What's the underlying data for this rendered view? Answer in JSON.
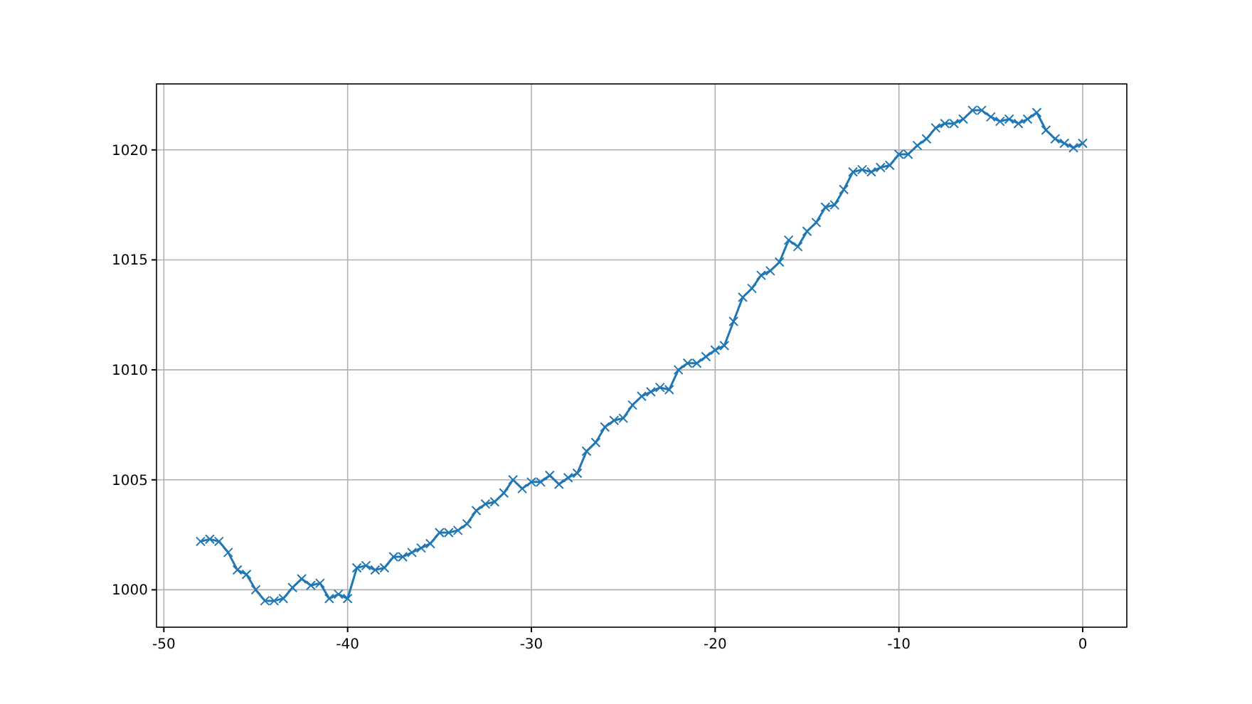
{
  "chart_data": {
    "type": "line",
    "marker": "cross",
    "grid": true,
    "xlim": [
      -50.4,
      2.4
    ],
    "ylim": [
      998.3,
      1023
    ],
    "xticks": [
      -50,
      -40,
      -30,
      -20,
      -10,
      0
    ],
    "yticks": [
      1000,
      1005,
      1010,
      1015,
      1020
    ],
    "x": [
      -48,
      -47.5,
      -47,
      -46.5,
      -46,
      -45.5,
      -45,
      -44.5,
      -44,
      -43.5,
      -43,
      -42.5,
      -42,
      -41.5,
      -41,
      -40.5,
      -40,
      -39.5,
      -39,
      -38.5,
      -38,
      -37.5,
      -37,
      -36.5,
      -36,
      -35.5,
      -35,
      -34.5,
      -34,
      -33.5,
      -33,
      -32.5,
      -32,
      -31.5,
      -31,
      -30.5,
      -30,
      -29.5,
      -29,
      -28.5,
      -28,
      -27.5,
      -27,
      -26.5,
      -26,
      -25.5,
      -25,
      -24.5,
      -24,
      -23.5,
      -23,
      -22.5,
      -22,
      -21.5,
      -21,
      -20.5,
      -20,
      -19.5,
      -19,
      -18.5,
      -18,
      -17.5,
      -17,
      -16.5,
      -16,
      -15.5,
      -15,
      -14.5,
      -14,
      -13.5,
      -13,
      -12.5,
      -12,
      -11.5,
      -11,
      -10.5,
      -10,
      -9.5,
      -9,
      -8.5,
      -8,
      -7.5,
      -7,
      -6.5,
      -6,
      -5.5,
      -5,
      -4.5,
      -4,
      -3.5,
      -3,
      -2.5,
      -2,
      -1.5,
      -1,
      -0.5,
      0
    ],
    "series": [
      {
        "color": "#1f77b4",
        "values": [
          1002.2,
          1002.3,
          1002.2,
          1001.7,
          1000.9,
          1000.7,
          1000.0,
          999.5,
          999.5,
          999.6,
          1000.1,
          1000.5,
          1000.2,
          1000.3,
          999.6,
          999.8,
          999.6,
          1001.0,
          1001.1,
          1000.9,
          1001.0,
          1001.5,
          1001.5,
          1001.7,
          1001.9,
          1002.1,
          1002.6,
          1002.6,
          1002.7,
          1003.0,
          1003.6,
          1003.9,
          1004.0,
          1004.4,
          1005.0,
          1004.6,
          1004.9,
          1004.9,
          1005.2,
          1004.8,
          1005.1,
          1005.3,
          1006.3,
          1006.7,
          1007.4,
          1007.7,
          1007.8,
          1008.4,
          1008.8,
          1009.0,
          1009.2,
          1009.1,
          1010.0,
          1010.3,
          1010.3,
          1010.6,
          1010.9,
          1011.1,
          1012.2,
          1013.3,
          1013.7,
          1014.3,
          1014.5,
          1014.9,
          1015.9,
          1015.6,
          1016.3,
          1016.7,
          1017.4,
          1017.5,
          1018.2,
          1019.0,
          1019.1,
          1019.0,
          1019.2,
          1019.3,
          1019.8,
          1019.8,
          1020.2,
          1020.5,
          1021.0,
          1021.2,
          1021.2,
          1021.4,
          1021.8,
          1021.8,
          1021.5,
          1021.3,
          1021.4,
          1021.2,
          1021.4,
          1021.7,
          1020.9,
          1020.5,
          1020.3,
          1020.1,
          1020.3
        ]
      }
    ]
  }
}
